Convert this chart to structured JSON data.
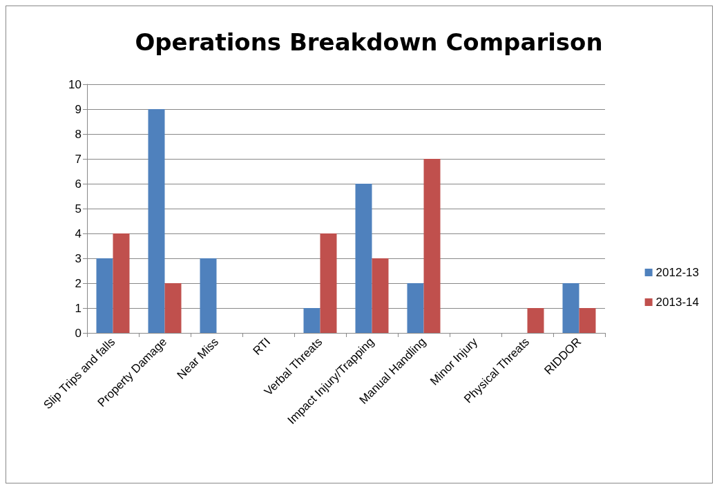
{
  "chart_data": {
    "type": "bar",
    "title": "Operations Breakdown Comparison",
    "categories": [
      "Slip Trips and falls",
      "Property Damage",
      "Near Miss",
      "RTI",
      "Verbal Threats",
      "Impact Injury/Trapping",
      "Manual Handling",
      "Minor Injury",
      "Physical Threats",
      "RIDDOR"
    ],
    "series": [
      {
        "name": "2012-13",
        "color": "#4f81bd",
        "values": [
          3,
          9,
          3,
          0,
          1,
          6,
          2,
          0,
          0,
          2
        ]
      },
      {
        "name": "2013-14",
        "color": "#c0504d",
        "values": [
          4,
          2,
          0,
          0,
          4,
          3,
          7,
          0,
          1,
          1
        ]
      }
    ],
    "ylim": [
      0,
      10
    ],
    "yticks": [
      0,
      1,
      2,
      3,
      4,
      5,
      6,
      7,
      8,
      9,
      10
    ],
    "grid": "y",
    "legend": "right"
  }
}
